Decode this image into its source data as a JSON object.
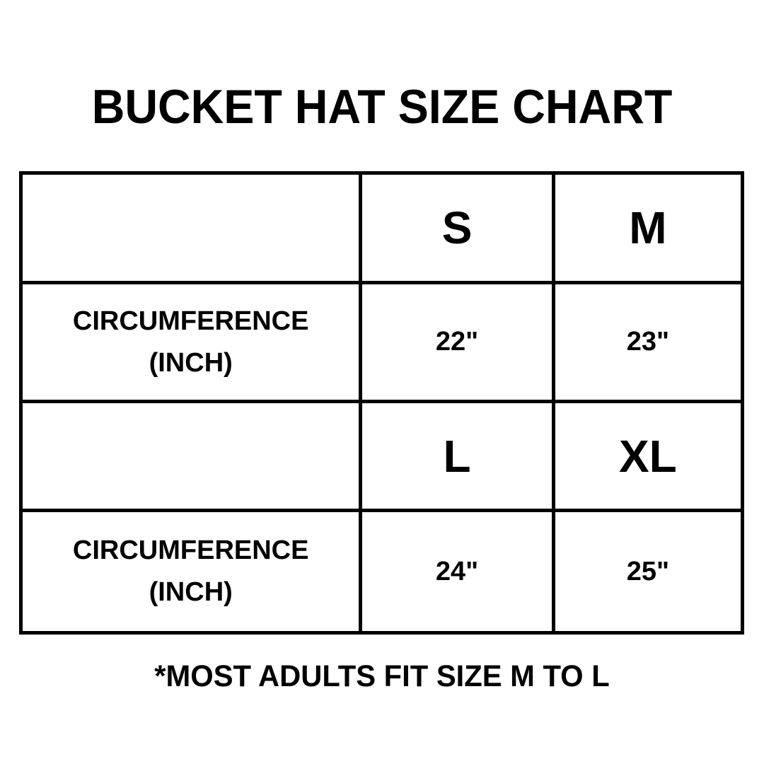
{
  "page": {
    "title": "BUCKET HAT SIZE CHART",
    "footnote": "*MOST ADULTS FIT SIZE M TO L"
  },
  "table": {
    "rows": [
      {
        "label_line1": "",
        "label_line2": "",
        "c1": "S",
        "c2": "M"
      },
      {
        "label_line1": "CIRCUMFERENCE",
        "label_line2": "(INCH)",
        "c1": "22\"",
        "c2": "23\""
      },
      {
        "label_line1": "",
        "label_line2": "",
        "c1": "L",
        "c2": "XL"
      },
      {
        "label_line1": "CIRCUMFERENCE",
        "label_line2": "(INCH)",
        "c1": "24\"",
        "c2": "25\""
      }
    ]
  },
  "chart_data": {
    "type": "table",
    "title": "BUCKET HAT SIZE CHART",
    "measurement_label": "CIRCUMFERENCE (INCH)",
    "sizes": [
      "S",
      "M",
      "L",
      "XL"
    ],
    "circumference_inch": [
      22,
      23,
      24,
      25
    ],
    "cell_text": {
      "S": "22\"",
      "M": "23\"",
      "L": "24\"",
      "XL": "25\""
    },
    "note": "*MOST ADULTS FIT SIZE M TO L",
    "layout": "two stacked header/value row pairs: S-M over 22\"-23\", L-XL over 24\"-25\"; first column holds measurement label"
  },
  "colors": {
    "background": "#ffffff",
    "text": "#000000",
    "border": "#000000"
  }
}
